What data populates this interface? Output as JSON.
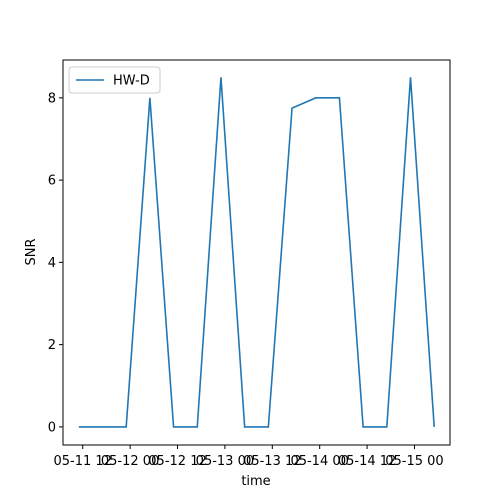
{
  "chart_data": {
    "type": "line",
    "x": [
      "05-11 11",
      "05-11 17",
      "05-11 23",
      "05-12 05",
      "05-12 11",
      "05-12 17",
      "05-12 23",
      "05-13 05",
      "05-13 11",
      "05-13 17",
      "05-13 23",
      "05-14 05",
      "05-14 11",
      "05-14 17",
      "05-14 23",
      "05-15 05"
    ],
    "series": [
      {
        "name": "HW-D",
        "color": "#1f77b4",
        "values": [
          0,
          0,
          0,
          8,
          0,
          0,
          8.5,
          0,
          0,
          7.75,
          8,
          8,
          0,
          0,
          8.5,
          0
        ]
      }
    ],
    "xlabel": "time",
    "ylabel": "SNR",
    "xlim": [
      "05-11 07",
      "05-15 09"
    ],
    "xticks": [
      "05-11 12",
      "05-12 00",
      "05-12 12",
      "05-13 00",
      "05-13 12",
      "05-14 00",
      "05-14 12",
      "05-15 00"
    ],
    "ylim": [
      -0.44,
      8.92
    ],
    "yticks": [
      0,
      2,
      4,
      6,
      8
    ],
    "legend": "upper left"
  }
}
